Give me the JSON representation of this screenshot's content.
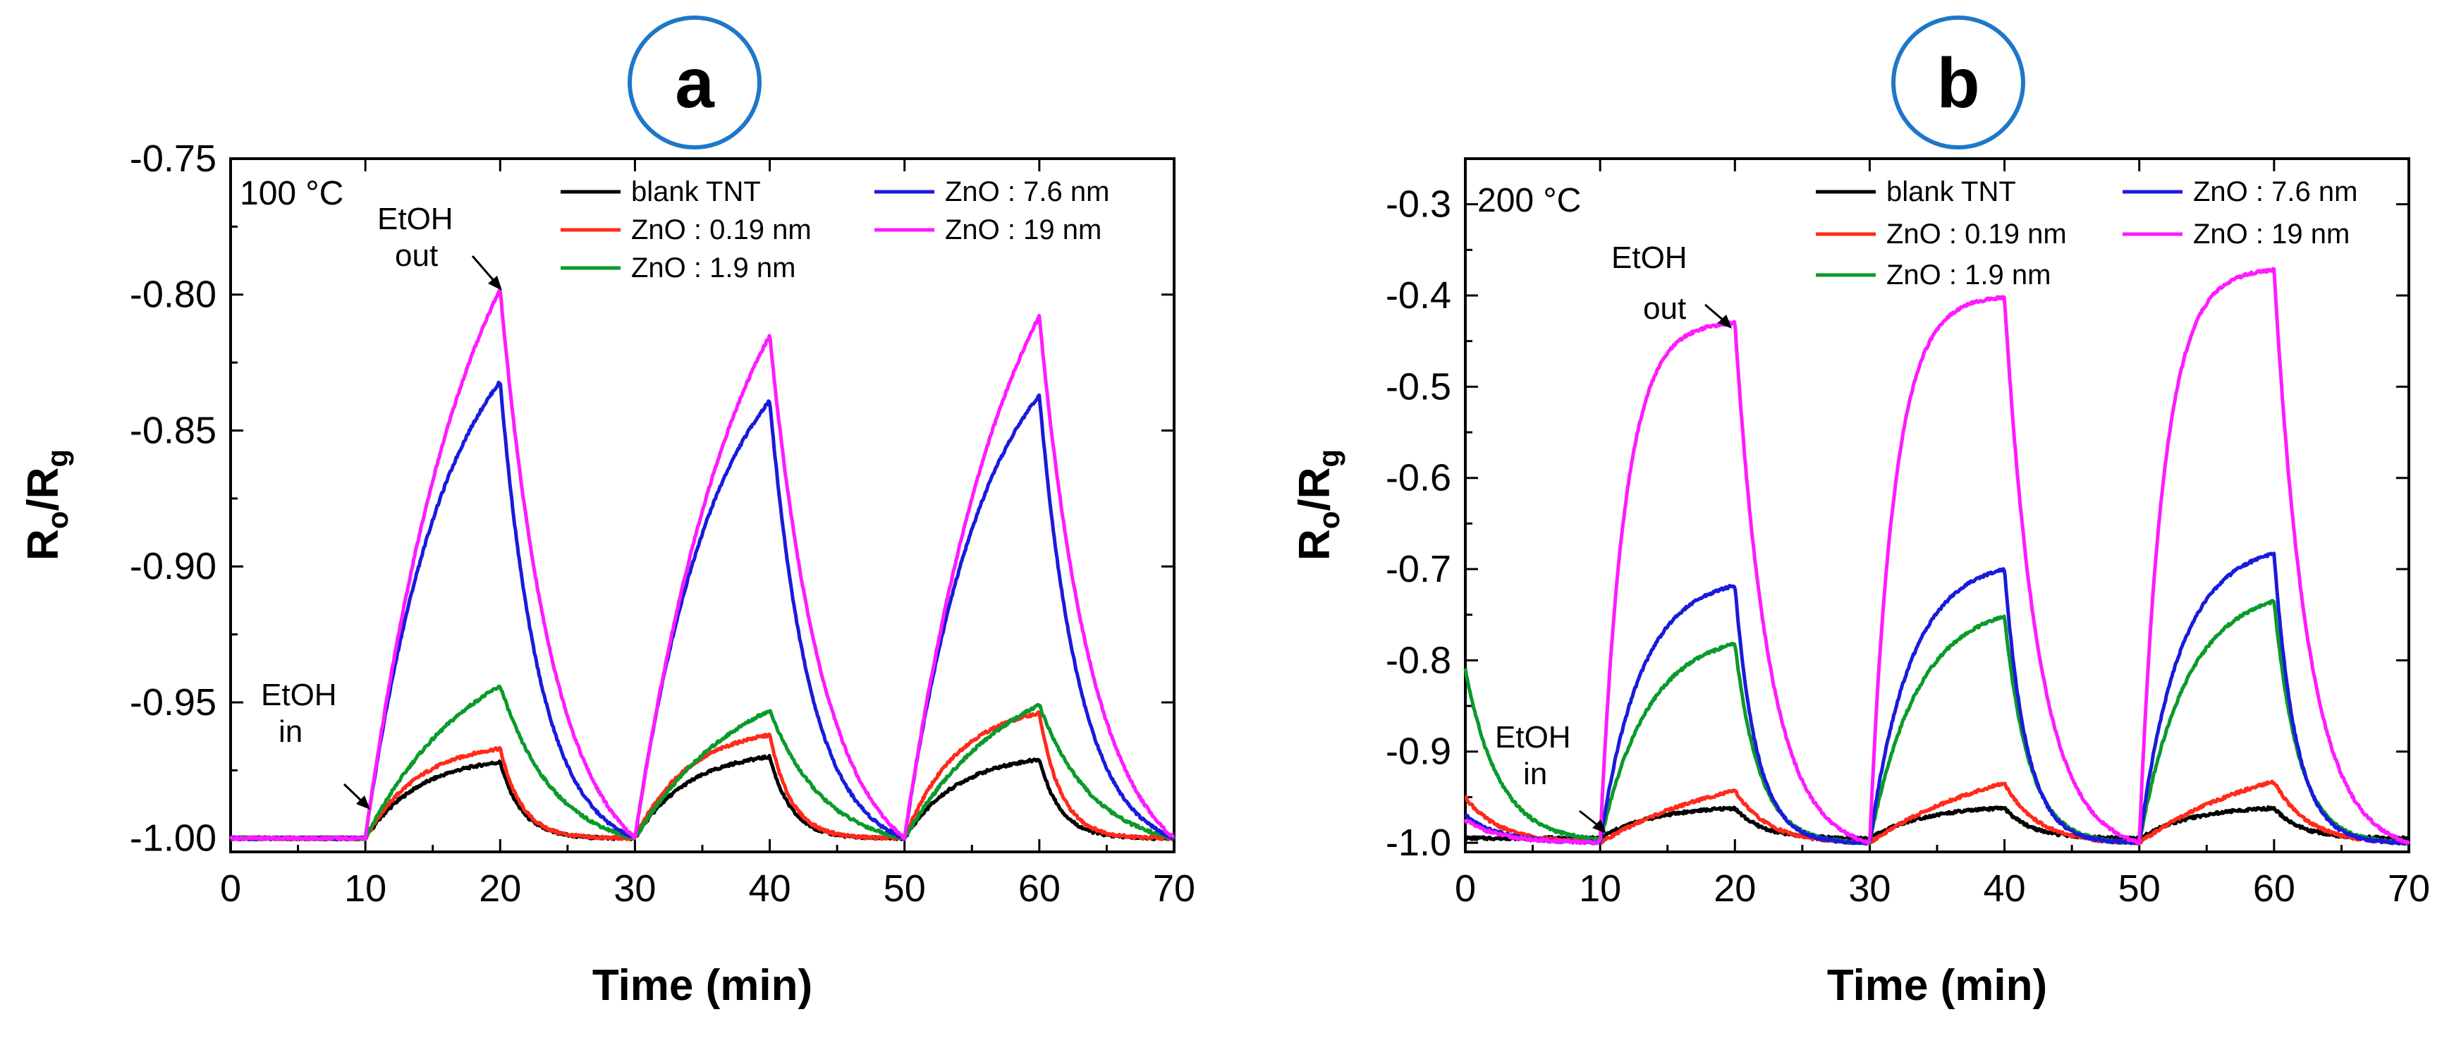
{
  "colors": {
    "blank_TNT": "#000000",
    "ZnO_0_19": "#ff2a1a",
    "ZnO_1_9": "#0a9a2a",
    "ZnO_7_6": "#1a1adc",
    "ZnO_19": "#ff1aff",
    "badge_border": "#1f77c8"
  },
  "chart_data": [
    {
      "type": "line",
      "panel_label": "a",
      "temperature_label": "100 °C",
      "xlabel": "Time (min)",
      "ylabel_main": "R",
      "ylabel_sub1": "o",
      "ylabel_slash": "/R",
      "ylabel_sub2": "g",
      "xlim": [
        0,
        70
      ],
      "ylim": [
        -1.005,
        -0.75
      ],
      "y_inverted": true,
      "xticks": [
        0,
        10,
        20,
        30,
        40,
        50,
        60,
        70
      ],
      "xtick_labels": [
        "0",
        "10",
        "20",
        "30",
        "40",
        "50",
        "60",
        "70"
      ],
      "yticks": [
        -0.75,
        -0.8,
        -0.85,
        -0.9,
        -0.95,
        -1.0
      ],
      "ytick_labels": [
        "-0.75",
        "-0.80",
        "-0.85",
        "-0.90",
        "-0.95",
        "-1.00"
      ],
      "legend_position": "top-right",
      "annotations": {
        "in_label_1": "EtOH",
        "in_label_2": "in",
        "out_label_1": "EtOH",
        "out_label_2": "out"
      },
      "series": [
        {
          "name": "blank TNT",
          "color_key": "blank_TNT",
          "baseline": -1.0,
          "peaks": [
            -0.972,
            -0.97,
            -0.971
          ],
          "tau_rise": 4.0,
          "tau_fall": 1.6,
          "pre_slope": 0.0002
        },
        {
          "name": "ZnO : 0.19 nm",
          "color_key": "ZnO_0_19",
          "baseline": -1.0,
          "peaks": [
            -0.967,
            -0.962,
            -0.954
          ],
          "tau_rise": 4.0,
          "tau_fall": 1.6,
          "pre_slope": 0
        },
        {
          "name": "ZnO : 1.9 nm",
          "color_key": "ZnO_1_9",
          "baseline": -1.0,
          "peaks": [
            -0.944,
            -0.953,
            -0.951
          ],
          "tau_rise": 8.0,
          "tau_fall": 4.0,
          "pre_slope": 0
        },
        {
          "name": "ZnO : 7.6 nm",
          "color_key": "ZnO_7_6",
          "baseline": -1.0,
          "peaks": [
            -0.832,
            -0.839,
            -0.837
          ],
          "tau_rise": 6.0,
          "tau_fall": 3.0,
          "pre_slope": 0
        },
        {
          "name": "ZnO : 19 nm",
          "color_key": "ZnO_19",
          "baseline": -1.0,
          "peaks": [
            -0.798,
            -0.815,
            -0.808
          ],
          "tau_rise": 8.0,
          "tau_fall": 4.0,
          "pre_slope": 0
        }
      ],
      "cycles": [
        [
          10,
          20,
          30
        ],
        [
          30,
          40,
          50
        ],
        [
          50,
          60,
          70
        ]
      ]
    },
    {
      "type": "line",
      "panel_label": "b",
      "temperature_label": "200 °C",
      "xlabel": "Time (min)",
      "ylabel_main": "R",
      "ylabel_sub1": "o",
      "ylabel_slash": "/R",
      "ylabel_sub2": "g",
      "xlim": [
        0,
        70
      ],
      "ylim": [
        -1.01,
        -0.25
      ],
      "y_inverted": true,
      "xticks": [
        0,
        10,
        20,
        30,
        40,
        50,
        60,
        70
      ],
      "xtick_labels": [
        "0",
        "10",
        "20",
        "30",
        "40",
        "50",
        "60",
        "70"
      ],
      "yticks": [
        -0.3,
        -0.4,
        -0.5,
        -0.6,
        -0.7,
        -0.8,
        -0.9,
        -1.0
      ],
      "ytick_labels": [
        "-0.3",
        "-0.4",
        "-0.5",
        "-0.6",
        "-0.7",
        "-0.8",
        "-0.9",
        "-1.0"
      ],
      "legend_position": "top-right",
      "annotations": {
        "in_label_1": "EtOH",
        "in_label_2": "in",
        "out_label_1": "EtOH",
        "out_label_2": "out"
      },
      "series": [
        {
          "name": "blank TNT",
          "color_key": "blank_TNT",
          "baseline": -0.995,
          "peaks": [
            -0.962,
            -0.962,
            -0.962
          ],
          "tau_rise": 4.0,
          "tau_fall": 2.0,
          "start": -0.995
        },
        {
          "name": "ZnO : 0.19 nm",
          "color_key": "ZnO_0_19",
          "baseline": -1.0,
          "peaks": [
            -0.943,
            -0.935,
            -0.933
          ],
          "tau_rise": 10.0,
          "tau_fall": 2.5,
          "start": -0.95
        },
        {
          "name": "ZnO : 1.9 nm",
          "color_key": "ZnO_1_9",
          "baseline": -1.0,
          "peaks": [
            -0.782,
            -0.752,
            -0.735
          ],
          "tau_rise": 3.5,
          "tau_fall": 1.8,
          "start": -0.81
        },
        {
          "name": "ZnO : 7.6 nm",
          "color_key": "ZnO_7_6",
          "baseline": -1.0,
          "peaks": [
            -0.718,
            -0.7,
            -0.683
          ],
          "tau_rise": 3.0,
          "tau_fall": 1.6,
          "start": -0.97
        },
        {
          "name": "ZnO : 19 nm",
          "color_key": "ZnO_19",
          "baseline": -1.0,
          "peaks": [
            -0.43,
            -0.402,
            -0.372
          ],
          "tau_rise": 1.8,
          "tau_fall": 2.5,
          "start": -0.975
        }
      ],
      "cycles": [
        [
          10,
          20,
          30
        ],
        [
          30,
          40,
          50
        ],
        [
          50,
          60,
          70
        ]
      ]
    }
  ]
}
